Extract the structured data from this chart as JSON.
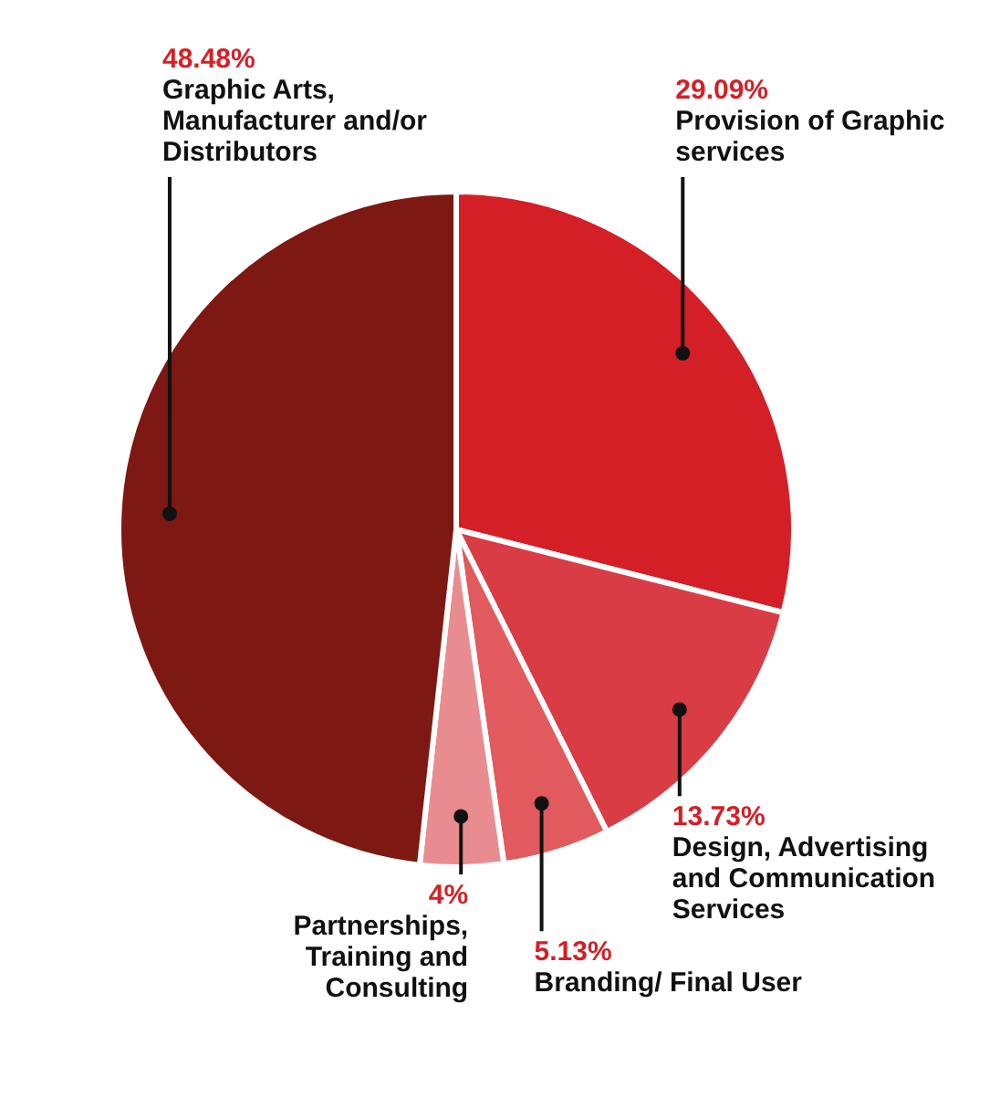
{
  "chart_data": {
    "type": "pie",
    "categories": [
      "Provision of Graphic services",
      "Design, Advertising and Communication Services",
      "Branding/ Final User",
      "Partnerships, Training and Consulting",
      "Graphic Arts, Manufacturer and/or Distributors"
    ],
    "values": [
      29.09,
      13.73,
      5.13,
      4,
      48.48
    ],
    "value_labels": [
      "29.09%",
      "13.73%",
      "5.13%",
      "4%",
      "48.48%"
    ],
    "colors": [
      "#d41f26",
      "#d93c45",
      "#e05a5e",
      "#e98c90",
      "#7d1812"
    ]
  }
}
